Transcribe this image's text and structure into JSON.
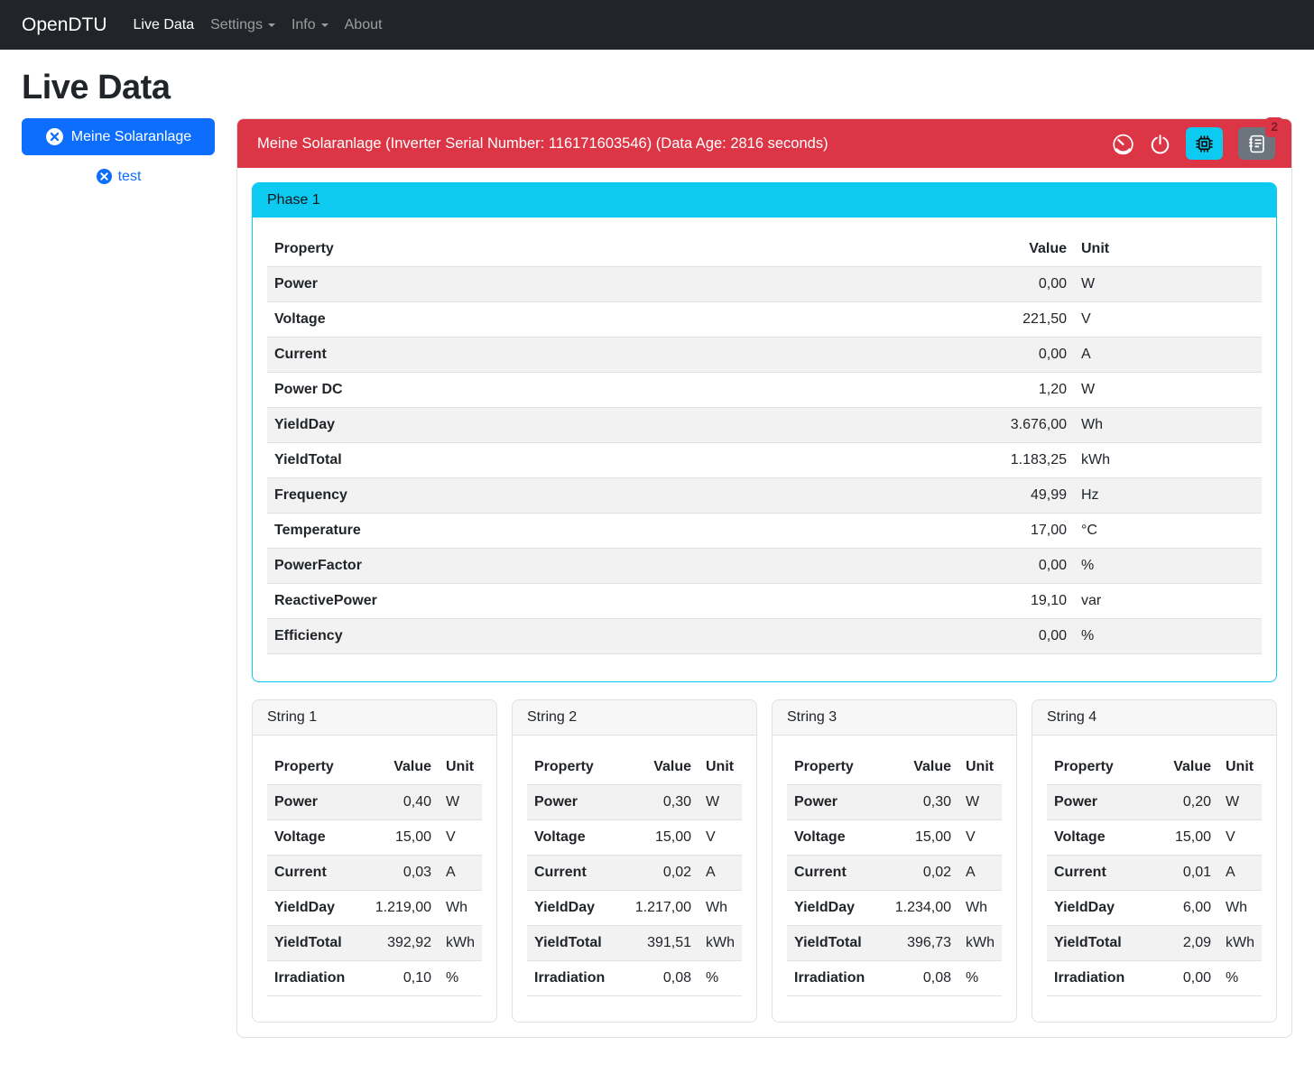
{
  "navbar": {
    "brand": "OpenDTU",
    "items": [
      {
        "label": "Live Data",
        "active": true,
        "dropdown": false
      },
      {
        "label": "Settings",
        "active": false,
        "dropdown": true
      },
      {
        "label": "Info",
        "active": false,
        "dropdown": true
      },
      {
        "label": "About",
        "active": false,
        "dropdown": false
      }
    ]
  },
  "page": {
    "title": "Live Data"
  },
  "sidebar": {
    "inverter_button_label": "Meine Solaranlage",
    "test_link_label": "test"
  },
  "inverter_header": {
    "title": "Meine Solaranlage (Inverter Serial Number: 116171603546) (Data Age: 2816 seconds)",
    "event_count": "2",
    "icons": [
      "speedometer-icon",
      "power-icon",
      "cpu-icon",
      "journal-icon"
    ]
  },
  "columns": [
    "Property",
    "Value",
    "Unit"
  ],
  "phase": {
    "title": "Phase 1",
    "rows": [
      [
        "Power",
        "0,00",
        "W"
      ],
      [
        "Voltage",
        "221,50",
        "V"
      ],
      [
        "Current",
        "0,00",
        "A"
      ],
      [
        "Power DC",
        "1,20",
        "W"
      ],
      [
        "YieldDay",
        "3.676,00",
        "Wh"
      ],
      [
        "YieldTotal",
        "1.183,25",
        "kWh"
      ],
      [
        "Frequency",
        "49,99",
        "Hz"
      ],
      [
        "Temperature",
        "17,00",
        "°C"
      ],
      [
        "PowerFactor",
        "0,00",
        "%"
      ],
      [
        "ReactivePower",
        "19,10",
        "var"
      ],
      [
        "Efficiency",
        "0,00",
        "%"
      ]
    ]
  },
  "strings": [
    {
      "title": "String 1",
      "rows": [
        [
          "Power",
          "0,40",
          "W"
        ],
        [
          "Voltage",
          "15,00",
          "V"
        ],
        [
          "Current",
          "0,03",
          "A"
        ],
        [
          "YieldDay",
          "1.219,00",
          "Wh"
        ],
        [
          "YieldTotal",
          "392,92",
          "kWh"
        ],
        [
          "Irradiation",
          "0,10",
          "%"
        ]
      ]
    },
    {
      "title": "String 2",
      "rows": [
        [
          "Power",
          "0,30",
          "W"
        ],
        [
          "Voltage",
          "15,00",
          "V"
        ],
        [
          "Current",
          "0,02",
          "A"
        ],
        [
          "YieldDay",
          "1.217,00",
          "Wh"
        ],
        [
          "YieldTotal",
          "391,51",
          "kWh"
        ],
        [
          "Irradiation",
          "0,08",
          "%"
        ]
      ]
    },
    {
      "title": "String 3",
      "rows": [
        [
          "Power",
          "0,30",
          "W"
        ],
        [
          "Voltage",
          "15,00",
          "V"
        ],
        [
          "Current",
          "0,02",
          "A"
        ],
        [
          "YieldDay",
          "1.234,00",
          "Wh"
        ],
        [
          "YieldTotal",
          "396,73",
          "kWh"
        ],
        [
          "Irradiation",
          "0,08",
          "%"
        ]
      ]
    },
    {
      "title": "String 4",
      "rows": [
        [
          "Power",
          "0,20",
          "W"
        ],
        [
          "Voltage",
          "15,00",
          "V"
        ],
        [
          "Current",
          "0,01",
          "A"
        ],
        [
          "YieldDay",
          "6,00",
          "Wh"
        ],
        [
          "YieldTotal",
          "2,09",
          "kWh"
        ],
        [
          "Irradiation",
          "0,00",
          "%"
        ]
      ]
    }
  ],
  "colors": {
    "navbar_bg": "#212529",
    "danger": "#dc3545",
    "info": "#0dcaf0",
    "primary": "#0d6efd",
    "secondary": "#6c757d",
    "border": "#dee2e6",
    "stripe": "#f2f2f2"
  }
}
